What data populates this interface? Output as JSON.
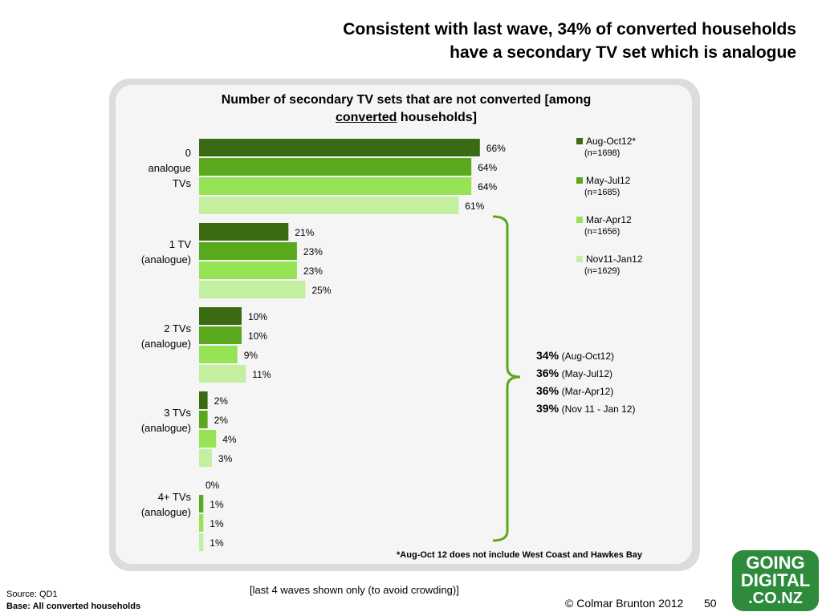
{
  "slide": {
    "title_line1": "Consistent with last wave,  34% of converted households",
    "title_line2": "have a secondary TV set which is analogue",
    "note": "[last 4 waves shown only (to avoid crowding)]",
    "source": "Source: QD1",
    "base": "Base: All converted households",
    "copyright": "© Colmar Brunton 2012",
    "page_number": "50",
    "logo": {
      "line1": "GOING",
      "line2": "DIGITAL",
      "line3": ".CO.NZ"
    },
    "footnote": "*Aug-Oct 12 does not include West Coast and Hawkes Bay"
  },
  "summary": [
    {
      "value": "34%",
      "label": "(Aug-Oct12)"
    },
    {
      "value": "36%",
      "label": "(May-Jul12)"
    },
    {
      "value": "36%",
      "label": "(Mar-Apr12)"
    },
    {
      "value": "39%",
      "label": "(Nov 11 - Jan 12)"
    }
  ],
  "colors": {
    "series": [
      "#3a6b12",
      "#5aa81e",
      "#96e356",
      "#c4eea0"
    ],
    "brace": "#5aa81e",
    "logo": "#2e8b3c"
  },
  "chart_data": {
    "type": "bar",
    "orientation": "horizontal",
    "title_line1": "Number of secondary TV sets that are not converted [among",
    "title_line2_underlined": "converted",
    "title_line2_rest": " households]",
    "categories": [
      [
        "0",
        "analogue",
        "TVs"
      ],
      [
        "1 TV",
        "(analogue)"
      ],
      [
        "2 TVs",
        "(analogue)"
      ],
      [
        "3 TVs",
        "(analogue)"
      ],
      [
        "4+ TVs",
        "(analogue)"
      ]
    ],
    "series": [
      {
        "name": "Aug-Oct12*",
        "n": "(n=1698)",
        "values": [
          66,
          21,
          10,
          2,
          0
        ]
      },
      {
        "name": "May-Jul12",
        "n": "(n=1685)",
        "values": [
          64,
          23,
          10,
          2,
          1
        ]
      },
      {
        "name": "Mar-Apr12",
        "n": "(n=1656)",
        "values": [
          64,
          23,
          9,
          4,
          1
        ]
      },
      {
        "name": "Nov11-Jan12",
        "n": "(n=1629)",
        "values": [
          61,
          25,
          11,
          3,
          1
        ]
      }
    ],
    "value_suffix": "%",
    "xlim": [
      0,
      70
    ],
    "grid": false,
    "legend_position": "right"
  }
}
